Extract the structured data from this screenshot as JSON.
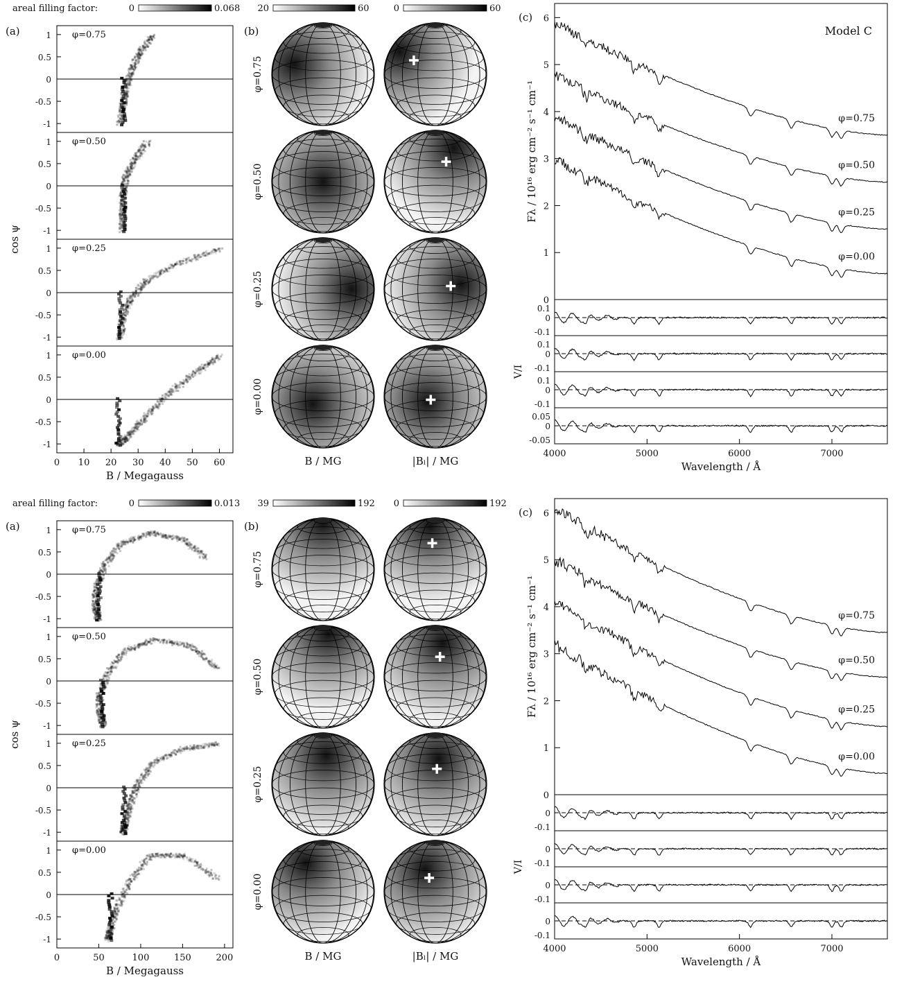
{
  "chart_data": [
    {
      "panel": "top",
      "colorbars": [
        {
          "label": "areal filling factor:",
          "min": "0",
          "max": "0.068"
        },
        {
          "label": "",
          "min": "20",
          "max": "60"
        },
        {
          "label": "",
          "min": "0",
          "max": "60"
        }
      ],
      "a": {
        "tag": "(a)",
        "type": "heatmap",
        "xlabel": "B / Megagauss",
        "ylabel": "cos ψ",
        "xlim": [
          0,
          65
        ],
        "ylim": [
          -1.2,
          1.2
        ],
        "xticks": [
          "0",
          "10",
          "20",
          "30",
          "40",
          "50",
          "60"
        ],
        "yticks": [
          "-1",
          "-0.5",
          "0",
          "0.5",
          "1"
        ],
        "subpanels": [
          {
            "phase": "φ=0.75",
            "track": [
              [
                35,
                1.0
              ],
              [
                30,
                0.6
              ],
              [
                27,
                0.2
              ],
              [
                25,
                -0.2
              ],
              [
                24,
                -0.6
              ],
              [
                23,
                -1.0
              ]
            ],
            "dense_x": 24
          },
          {
            "phase": "φ=0.50",
            "track": [
              [
                33,
                1.0
              ],
              [
                28,
                0.6
              ],
              [
                25,
                0.2
              ],
              [
                24,
                -0.2
              ],
              [
                24,
                -0.6
              ],
              [
                24,
                -1.0
              ]
            ],
            "dense_x": 24
          },
          {
            "phase": "φ=0.25",
            "track": [
              [
                60,
                1.0
              ],
              [
                45,
                0.7
              ],
              [
                33,
                0.3
              ],
              [
                27,
                -0.1
              ],
              [
                24,
                -0.5
              ],
              [
                23,
                -1.0
              ]
            ],
            "dense_x": 23
          },
          {
            "phase": "φ=0.00",
            "track": [
              [
                60,
                1.0
              ],
              [
                50,
                0.6
              ],
              [
                40,
                0.1
              ],
              [
                32,
                -0.4
              ],
              [
                26,
                -0.8
              ],
              [
                22,
                -1.0
              ]
            ],
            "dense_x": 22
          }
        ]
      },
      "b": {
        "tag": "(b)",
        "phases": [
          "φ=0.75",
          "φ=0.50",
          "φ=0.25",
          "φ=0.00"
        ],
        "col_labels": [
          "B / MG",
          "|Bₗ| / MG"
        ],
        "spots_B": [
          [
            -0.55,
            -0.2
          ],
          [
            0,
            0
          ],
          [
            0.55,
            0.0
          ],
          [
            -0.2,
            0.15
          ]
        ],
        "spots_Bl": [
          [
            -0.7,
            -0.45
          ],
          [
            0.35,
            -0.65
          ],
          [
            0.5,
            -0.1
          ],
          [
            -0.15,
            0.1
          ]
        ]
      },
      "c": {
        "tag": "(c)",
        "type": "line",
        "model": "Model C",
        "xlabel": "Wavelength / Å",
        "ylabel": "Fλ / 10¹⁶ erg cm⁻² s⁻¹ cm⁻¹",
        "ylabel2": "V/I",
        "xlim": [
          4000,
          7600
        ],
        "ylim": [
          0,
          6.3
        ],
        "xticks": [
          "4000",
          "5000",
          "6000",
          "7000"
        ],
        "yticks": [
          "0",
          "1",
          "2",
          "3",
          "4",
          "5",
          "6"
        ],
        "vi_ticks": [
          [
            "0.1",
            "0",
            "-0.1"
          ],
          [
            "0.1",
            "0",
            "-0.1"
          ],
          [
            "0.1",
            "0",
            "-0.1"
          ],
          [
            "0.05",
            "0",
            "-0.05"
          ]
        ],
        "series": [
          {
            "name": "φ=0.75",
            "start": 5.9,
            "end": 3.5
          },
          {
            "name": "φ=0.50",
            "start": 4.8,
            "end": 2.5
          },
          {
            "name": "φ=0.25",
            "start": 3.9,
            "end": 1.5
          },
          {
            "name": "φ=0.00",
            "start": 3.0,
            "end": 0.55
          }
        ]
      }
    },
    {
      "panel": "bottom",
      "colorbars": [
        {
          "label": "areal filling factor:",
          "min": "0",
          "max": "0.013"
        },
        {
          "label": "",
          "min": "39",
          "max": "192"
        },
        {
          "label": "",
          "min": "0",
          "max": "192"
        }
      ],
      "a": {
        "tag": "(a)",
        "type": "heatmap",
        "xlabel": "B / Megagauss",
        "ylabel": "cos ψ",
        "xlim": [
          0,
          210
        ],
        "ylim": [
          -1.2,
          1.2
        ],
        "xticks": [
          "0",
          "50",
          "100",
          "150",
          "200"
        ],
        "yticks": [
          "-1",
          "-0.5",
          "0",
          "0.5",
          "1"
        ],
        "subpanels": [
          {
            "phase": "φ=0.75",
            "track": [
              [
                175,
                0.4
              ],
              [
                150,
                0.8
              ],
              [
                110,
                0.95
              ],
              [
                75,
                0.7
              ],
              [
                55,
                0.2
              ],
              [
                46,
                -0.3
              ],
              [
                45,
                -0.7
              ],
              [
                48,
                -1.0
              ]
            ],
            "dense_x": 48
          },
          {
            "phase": "φ=0.50",
            "track": [
              [
                190,
                0.3
              ],
              [
                160,
                0.8
              ],
              [
                115,
                0.95
              ],
              [
                80,
                0.7
              ],
              [
                60,
                0.2
              ],
              [
                50,
                -0.3
              ],
              [
                50,
                -0.7
              ],
              [
                55,
                -1.0
              ]
            ],
            "dense_x": 52
          },
          {
            "phase": "φ=0.25",
            "track": [
              [
                190,
                1.0
              ],
              [
                150,
                0.9
              ],
              [
                115,
                0.6
              ],
              [
                95,
                0.1
              ],
              [
                85,
                -0.4
              ],
              [
                80,
                -0.8
              ],
              [
                78,
                -1.0
              ]
            ],
            "dense_x": 78
          },
          {
            "phase": "φ=0.00",
            "track": [
              [
                190,
                0.4
              ],
              [
                150,
                0.9
              ],
              [
                110,
                0.9
              ],
              [
                85,
                0.3
              ],
              [
                70,
                -0.3
              ],
              [
                62,
                -0.8
              ],
              [
                60,
                -1.0
              ]
            ],
            "dense_x": 62
          }
        ]
      },
      "b": {
        "tag": "(b)",
        "phases": [
          "φ=0.75",
          "φ=0.50",
          "φ=0.25",
          "φ=0.00"
        ],
        "col_labels": [
          "B / MG",
          "|Bₗ| / MG"
        ],
        "spots_B": [
          [
            0,
            -0.9
          ],
          [
            0.1,
            -0.85
          ],
          [
            0.05,
            -0.55
          ],
          [
            -0.35,
            -0.55
          ]
        ],
        "spots_Bl": [
          [
            -0.1,
            -0.85
          ],
          [
            0.15,
            -0.65
          ],
          [
            0.05,
            -0.5
          ],
          [
            -0.2,
            -0.45
          ]
        ]
      },
      "c": {
        "tag": "(c)",
        "type": "line",
        "model": "",
        "xlabel": "Wavelength / Å",
        "ylabel": "Fλ / 10¹⁶ erg cm⁻² s⁻¹ cm⁻¹",
        "ylabel2": "V/I",
        "xlim": [
          4000,
          7600
        ],
        "ylim": [
          0,
          6.3
        ],
        "xticks": [
          "4000",
          "5000",
          "6000",
          "7000"
        ],
        "yticks": [
          "0",
          "1",
          "2",
          "3",
          "4",
          "5",
          "6"
        ],
        "vi_ticks": [
          [
            "0",
            "-0.1"
          ],
          [
            "0",
            "-0.1"
          ],
          [
            "0",
            "-0.1"
          ],
          [
            "0",
            "-0.1"
          ]
        ],
        "series": [
          {
            "name": "φ=0.75",
            "start": 6.1,
            "end": 3.45
          },
          {
            "name": "φ=0.50",
            "start": 5.0,
            "end": 2.5
          },
          {
            "name": "φ=0.25",
            "start": 4.1,
            "end": 1.45
          },
          {
            "name": "φ=0.00",
            "start": 3.2,
            "end": 0.45
          }
        ]
      }
    }
  ]
}
